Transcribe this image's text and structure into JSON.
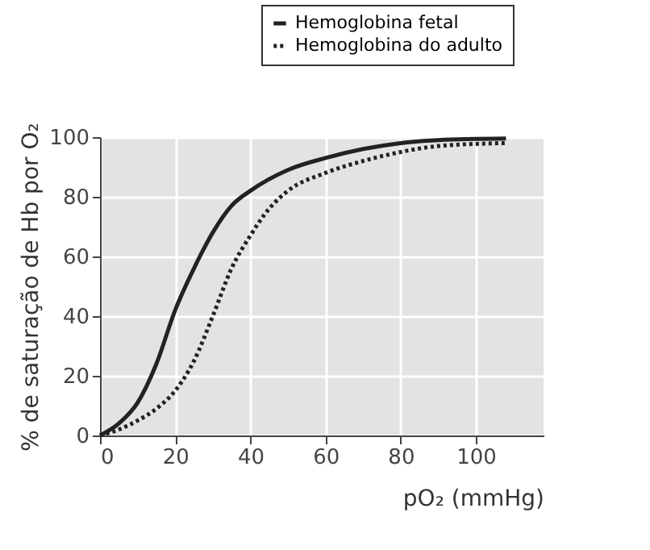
{
  "chart_data": {
    "type": "line",
    "xlabel": "pO₂ (mmHg)",
    "ylabel": "% de saturação de Hb por O₂",
    "xlim": [
      0,
      118
    ],
    "ylim": [
      0,
      100
    ],
    "xticks": [
      0,
      20,
      40,
      60,
      80,
      100
    ],
    "yticks": [
      0,
      20,
      40,
      60,
      80,
      100
    ],
    "grid": true,
    "legend": "top right",
    "marker": "none",
    "series": [
      {
        "name": "Hemoglobina fetal",
        "color": "#222222",
        "line_style": "solid",
        "x": [
          0,
          5,
          10,
          15,
          20,
          25,
          30,
          35,
          40,
          50,
          60,
          70,
          80,
          90,
          108
        ],
        "values": [
          0,
          4,
          11,
          24,
          42,
          56,
          68,
          77,
          82,
          89,
          93,
          96,
          98,
          99,
          99.5
        ]
      },
      {
        "name": "Hemoglobina do adulto",
        "color": "#222222",
        "line_style": "dotted",
        "x": [
          0,
          5,
          10,
          15,
          20,
          25,
          30,
          35,
          40,
          45,
          50,
          60,
          70,
          80,
          90,
          108
        ],
        "values": [
          0,
          2,
          5,
          9,
          15,
          25,
          40,
          56,
          67,
          76,
          82,
          88,
          92,
          95,
          97,
          98
        ]
      }
    ]
  }
}
